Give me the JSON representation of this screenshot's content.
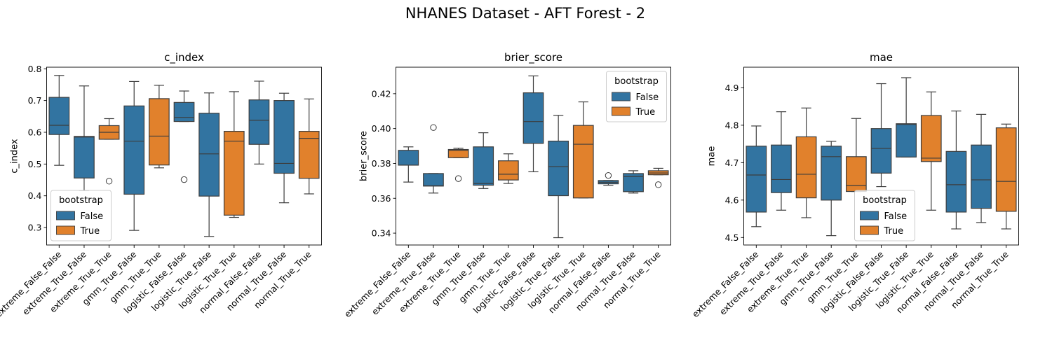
{
  "title": "NHANES Dataset - AFT Forest - 2",
  "colors": {
    "False": "#3274a1",
    "True": "#e1812c",
    "whisker": "#3d3d3d"
  },
  "chart_data": [
    {
      "type": "box",
      "title": "c_index",
      "ylabel": "c_index",
      "xlabel": "",
      "ylim": [
        0.245,
        0.805
      ],
      "yticks": [
        0.3,
        0.4,
        0.5,
        0.6,
        0.7,
        0.8
      ],
      "yticklabels": [
        "0.3",
        "0.4",
        "0.5",
        "0.6",
        "0.7",
        "0.8"
      ],
      "categories": [
        "extreme_False_False",
        "extreme_True_False",
        "extreme_True_True",
        "gmm_True_False",
        "gmm_True_True",
        "logistic_False_False",
        "logistic_True_False",
        "logistic_True_True",
        "normal_False_False",
        "normal_True_False",
        "normal_True_True"
      ],
      "legend": {
        "title": "bootstrap",
        "entries": [
          "False",
          "True"
        ],
        "position": "lower-left"
      },
      "boxes": [
        {
          "group": "False",
          "q1": 0.593,
          "median": 0.622,
          "q3": 0.71,
          "whislo": 0.496,
          "whishi": 0.779,
          "fliers": []
        },
        {
          "group": "False",
          "q1": 0.456,
          "median": 0.585,
          "q3": 0.587,
          "whislo": 0.416,
          "whishi": 0.746,
          "fliers": []
        },
        {
          "group": "True",
          "q1": 0.578,
          "median": 0.6,
          "q3": 0.621,
          "whislo": 0.578,
          "whishi": 0.643,
          "fliers": [
            0.446
          ]
        },
        {
          "group": "False",
          "q1": 0.405,
          "median": 0.572,
          "q3": 0.683,
          "whislo": 0.291,
          "whishi": 0.76,
          "fliers": []
        },
        {
          "group": "True",
          "q1": 0.497,
          "median": 0.588,
          "q3": 0.706,
          "whislo": 0.488,
          "whishi": 0.748,
          "fliers": []
        },
        {
          "group": "False",
          "q1": 0.634,
          "median": 0.647,
          "q3": 0.694,
          "whislo": 0.634,
          "whishi": 0.73,
          "fliers": [
            0.451
          ]
        },
        {
          "group": "False",
          "q1": 0.399,
          "median": 0.532,
          "q3": 0.66,
          "whislo": 0.272,
          "whishi": 0.724,
          "fliers": []
        },
        {
          "group": "True",
          "q1": 0.339,
          "median": 0.572,
          "q3": 0.603,
          "whislo": 0.332,
          "whishi": 0.728,
          "fliers": []
        },
        {
          "group": "False",
          "q1": 0.562,
          "median": 0.638,
          "q3": 0.702,
          "whislo": 0.5,
          "whishi": 0.761,
          "fliers": []
        },
        {
          "group": "False",
          "q1": 0.471,
          "median": 0.502,
          "q3": 0.7,
          "whislo": 0.378,
          "whishi": 0.723,
          "fliers": []
        },
        {
          "group": "True",
          "q1": 0.455,
          "median": 0.581,
          "q3": 0.603,
          "whislo": 0.406,
          "whishi": 0.705,
          "fliers": []
        }
      ]
    },
    {
      "type": "box",
      "title": "brier_score",
      "ylabel": "brier_score",
      "xlabel": "",
      "ylim": [
        0.3332,
        0.4352
      ],
      "yticks": [
        0.34,
        0.36,
        0.38,
        0.4,
        0.42
      ],
      "yticklabels": [
        "0.34",
        "0.36",
        "0.38",
        "0.40",
        "0.42"
      ],
      "categories": [
        "extreme_False_False",
        "extreme_True_False",
        "extreme_True_True",
        "gmm_True_False",
        "gmm_True_True",
        "logistic_False_False",
        "logistic_True_False",
        "logistic_True_True",
        "normal_False_False",
        "normal_True_False",
        "normal_True_True"
      ],
      "legend": {
        "title": "bootstrap",
        "entries": [
          "False",
          "True"
        ],
        "position": "upper-right"
      },
      "boxes": [
        {
          "group": "False",
          "q1": 0.379,
          "median": 0.379,
          "q3": 0.3875,
          "whislo": 0.3693,
          "whishi": 0.3895,
          "fliers": []
        },
        {
          "group": "False",
          "q1": 0.367,
          "median": 0.3672,
          "q3": 0.3742,
          "whislo": 0.363,
          "whishi": 0.3742,
          "fliers": [
            0.4006
          ]
        },
        {
          "group": "True",
          "q1": 0.3833,
          "median": 0.3875,
          "q3": 0.388,
          "whislo": 0.3833,
          "whishi": 0.3887,
          "fliers": [
            0.3713
          ]
        },
        {
          "group": "False",
          "q1": 0.3675,
          "median": 0.3685,
          "q3": 0.3895,
          "whislo": 0.3656,
          "whishi": 0.3976,
          "fliers": []
        },
        {
          "group": "True",
          "q1": 0.3705,
          "median": 0.3738,
          "q3": 0.3815,
          "whislo": 0.3685,
          "whishi": 0.3855,
          "fliers": []
        },
        {
          "group": "False",
          "q1": 0.3915,
          "median": 0.404,
          "q3": 0.4205,
          "whislo": 0.3752,
          "whishi": 0.4302,
          "fliers": []
        },
        {
          "group": "False",
          "q1": 0.3615,
          "median": 0.3782,
          "q3": 0.3928,
          "whislo": 0.3374,
          "whishi": 0.4076,
          "fliers": []
        },
        {
          "group": "True",
          "q1": 0.3602,
          "median": 0.391,
          "q3": 0.4018,
          "whislo": 0.3602,
          "whishi": 0.4153,
          "fliers": []
        },
        {
          "group": "False",
          "q1": 0.3683,
          "median": 0.3692,
          "q3": 0.3702,
          "whislo": 0.3675,
          "whishi": 0.3702,
          "fliers": [
            0.3731
          ]
        },
        {
          "group": "False",
          "q1": 0.3638,
          "median": 0.3725,
          "q3": 0.3742,
          "whislo": 0.363,
          "whishi": 0.3758,
          "fliers": []
        },
        {
          "group": "True",
          "q1": 0.3735,
          "median": 0.3745,
          "q3": 0.3758,
          "whislo": 0.3735,
          "whishi": 0.3772,
          "fliers": [
            0.3678
          ]
        }
      ]
    },
    {
      "type": "box",
      "title": "mae",
      "ylabel": "mae",
      "xlabel": "",
      "ylim": [
        4.48,
        4.955
      ],
      "yticks": [
        4.5,
        4.6,
        4.7,
        4.8,
        4.9
      ],
      "yticklabels": [
        "4.5",
        "4.6",
        "4.7",
        "4.8",
        "4.9"
      ],
      "categories": [
        "extreme_False_False",
        "extreme_True_False",
        "extreme_True_True",
        "gmm_True_False",
        "gmm_True_True",
        "logistic_False_False",
        "logistic_True_False",
        "logistic_True_True",
        "normal_False_False",
        "normal_True_False",
        "normal_True_True"
      ],
      "legend": {
        "title": "bootstrap",
        "entries": [
          "False",
          "True"
        ],
        "position": "lower-center"
      },
      "boxes": [
        {
          "group": "False",
          "q1": 4.568,
          "median": 4.667,
          "q3": 4.744,
          "whislo": 4.529,
          "whishi": 4.798,
          "fliers": []
        },
        {
          "group": "False",
          "q1": 4.62,
          "median": 4.655,
          "q3": 4.747,
          "whislo": 4.573,
          "whishi": 4.836,
          "fliers": []
        },
        {
          "group": "True",
          "q1": 4.606,
          "median": 4.669,
          "q3": 4.769,
          "whislo": 4.553,
          "whishi": 4.846,
          "fliers": []
        },
        {
          "group": "False",
          "q1": 4.6,
          "median": 4.716,
          "q3": 4.744,
          "whislo": 4.505,
          "whishi": 4.757,
          "fliers": []
        },
        {
          "group": "True",
          "q1": 4.623,
          "median": 4.639,
          "q3": 4.716,
          "whislo": 4.623,
          "whishi": 4.818,
          "fliers": []
        },
        {
          "group": "False",
          "q1": 4.672,
          "median": 4.738,
          "q3": 4.791,
          "whislo": 4.636,
          "whishi": 4.911,
          "fliers": []
        },
        {
          "group": "False",
          "q1": 4.715,
          "median": 4.802,
          "q3": 4.804,
          "whislo": 4.715,
          "whishi": 4.927,
          "fliers": []
        },
        {
          "group": "True",
          "q1": 4.703,
          "median": 4.712,
          "q3": 4.826,
          "whislo": 4.573,
          "whishi": 4.889,
          "fliers": []
        },
        {
          "group": "False",
          "q1": 4.568,
          "median": 4.641,
          "q3": 4.73,
          "whislo": 4.523,
          "whishi": 4.838,
          "fliers": []
        },
        {
          "group": "False",
          "q1": 4.578,
          "median": 4.654,
          "q3": 4.747,
          "whislo": 4.54,
          "whishi": 4.829,
          "fliers": []
        },
        {
          "group": "True",
          "q1": 4.57,
          "median": 4.65,
          "q3": 4.793,
          "whislo": 4.523,
          "whishi": 4.803,
          "fliers": []
        }
      ]
    }
  ]
}
